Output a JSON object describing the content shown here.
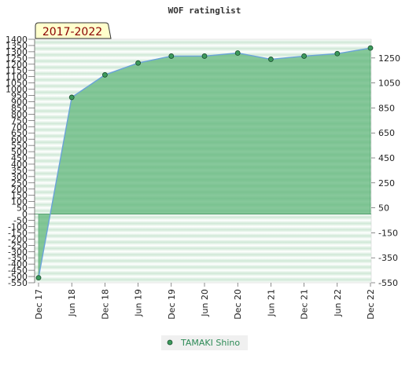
{
  "chart_data": {
    "type": "area",
    "title": "WOF ratinglist",
    "period_label": "2017-2022",
    "series": [
      {
        "name": "TAMAKI Shino",
        "x": [
          "Dec 17",
          "Jun 18",
          "Dec 18",
          "Jun 19",
          "Dec 19",
          "Jun 20",
          "Dec 20",
          "Jun 21",
          "Dec 21",
          "Jun 22",
          "Dec 22"
        ],
        "values": [
          -510,
          935,
          1115,
          1210,
          1265,
          1265,
          1290,
          1240,
          1265,
          1285,
          1330
        ]
      }
    ],
    "x_tick_labels": [
      "Dec 17",
      "Jun 18",
      "Dec 18",
      "Jun 19",
      "Dec 19",
      "Jun 20",
      "Dec 20",
      "Jun 21",
      "Dec 21",
      "Jun 22",
      "Dec 22"
    ],
    "ylim": [
      -550,
      1400
    ],
    "y_left_ticks": [
      "1400",
      "1350",
      "1300",
      "1250",
      "1200",
      "1150",
      "1100",
      "1050",
      "1000",
      "950",
      "900",
      "850",
      "800",
      "750",
      "700",
      "650",
      "600",
      "550",
      "500",
      "450",
      "400",
      "350",
      "300",
      "250",
      "200",
      "150",
      "100",
      "50",
      "0",
      "-50",
      "-100",
      "-150",
      "-200",
      "-250",
      "-300",
      "-350",
      "-400",
      "-450",
      "-500",
      "-550"
    ],
    "y_right_ticks": [
      "1250",
      "1050",
      "850",
      "650",
      "450",
      "250",
      "50",
      "-150",
      "-350",
      "-550"
    ],
    "grid": true,
    "legend_position": "bottom",
    "colors": {
      "fill": "#5fb57a",
      "line": "#6aa3d8",
      "marker": "#3c9a5c",
      "band_dark": "#cfe8d6",
      "band_light": "#ffffff",
      "period_bg": "#ffffcc"
    }
  }
}
